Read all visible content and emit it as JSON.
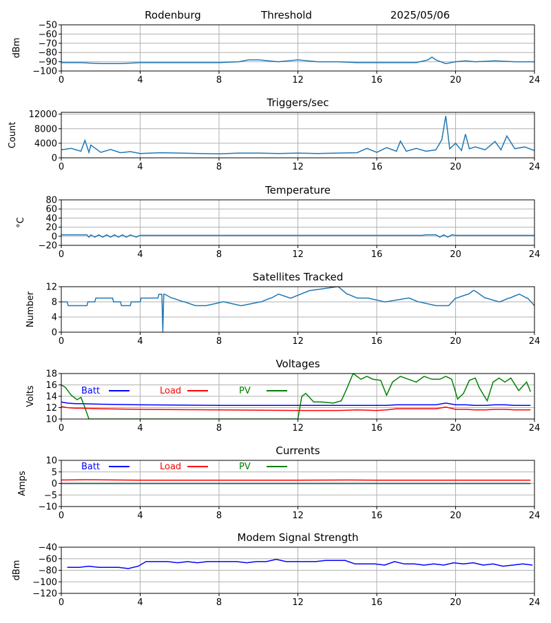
{
  "header": {
    "station": "Rodenburg",
    "mode": "Threshold",
    "date": "2025/05/06"
  },
  "colors": {
    "series_default": "#1f77b4",
    "batt": "#0000ff",
    "load": "#ff0000",
    "pv": "#008000",
    "grid": "#b0b0b0",
    "axis": "#000000"
  },
  "chart_data": [
    {
      "id": "threshold",
      "type": "line",
      "title": "",
      "ylabel": "dBm",
      "xlim": [
        0,
        24
      ],
      "ylim": [
        -100,
        -50
      ],
      "yticks": [
        -50,
        -60,
        -70,
        -80,
        -90,
        -100
      ],
      "xticks": [
        0,
        4,
        8,
        12,
        16,
        20,
        24
      ],
      "grid": true,
      "series": [
        {
          "color": "#1f77b4",
          "x": [
            0,
            1,
            2,
            3,
            4,
            5,
            6,
            7,
            8,
            9,
            9.5,
            10,
            11,
            12,
            12.5,
            13,
            14,
            15,
            16,
            17,
            18,
            18.6,
            18.8,
            19,
            19.5,
            20,
            20.5,
            21,
            22,
            23,
            24
          ],
          "y": [
            -91,
            -91,
            -92,
            -92,
            -91,
            -91,
            -91,
            -91,
            -91,
            -90,
            -88,
            -88,
            -90,
            -88,
            -89,
            -90,
            -90,
            -91,
            -91,
            -91,
            -91,
            -88,
            -85,
            -88,
            -92,
            -90,
            -89,
            -90,
            -89,
            -90,
            -90
          ]
        }
      ]
    },
    {
      "id": "triggers",
      "type": "line",
      "title": "Triggers/sec",
      "ylabel": "Count",
      "xlim": [
        0,
        24
      ],
      "ylim": [
        0,
        12500
      ],
      "yticks": [
        0,
        4000,
        8000,
        12000
      ],
      "xticks": [
        0,
        4,
        8,
        12,
        16,
        20,
        24
      ],
      "grid": true,
      "series": [
        {
          "color": "#1f77b4",
          "x": [
            0,
            0.5,
            1,
            1.2,
            1.4,
            1.5,
            2,
            2.5,
            3,
            3.5,
            4,
            5,
            6,
            7,
            8,
            9,
            10,
            11,
            12,
            13,
            14,
            15,
            15.5,
            16,
            16.5,
            17,
            17.2,
            17.5,
            18,
            18.5,
            19,
            19.3,
            19.5,
            19.7,
            20,
            20.3,
            20.5,
            20.7,
            21,
            21.5,
            22,
            22.3,
            22.6,
            23,
            23.5,
            24
          ],
          "y": [
            2200,
            2600,
            1800,
            4800,
            1500,
            3500,
            1500,
            2300,
            1400,
            1700,
            1200,
            1400,
            1300,
            1200,
            1100,
            1300,
            1300,
            1200,
            1300,
            1200,
            1300,
            1400,
            2600,
            1500,
            2800,
            1800,
            4600,
            1800,
            2600,
            1800,
            2200,
            5000,
            11500,
            2500,
            4000,
            2000,
            6500,
            2500,
            3000,
            2200,
            4500,
            2200,
            6000,
            2500,
            3000,
            2000
          ]
        }
      ]
    },
    {
      "id": "temperature",
      "type": "line",
      "title": "Temperature",
      "ylabel": "°C",
      "xlim": [
        0,
        24
      ],
      "ylim": [
        -20,
        80
      ],
      "yticks": [
        -20,
        0,
        20,
        40,
        60,
        80
      ],
      "xticks": [
        0,
        4,
        8,
        12,
        16,
        20,
        24
      ],
      "grid": true,
      "series": [
        {
          "color": "#1f77b4",
          "x": [
            0,
            1.3,
            1.4,
            1.5,
            1.7,
            1.9,
            2.1,
            2.3,
            2.5,
            2.7,
            2.9,
            3.1,
            3.3,
            3.5,
            3.8,
            4,
            8,
            12,
            16,
            18.3,
            18.5,
            19,
            19.2,
            19.4,
            19.6,
            19.8,
            20,
            24
          ],
          "y": [
            3,
            3,
            -2,
            3,
            -2,
            3,
            -2,
            3,
            -2,
            3,
            -2,
            3,
            -2,
            3,
            -2,
            2,
            2,
            2,
            2,
            2,
            3,
            3,
            -2,
            3,
            -2,
            3,
            2,
            2
          ]
        }
      ]
    },
    {
      "id": "satellites",
      "type": "line",
      "title": "Satellites Tracked",
      "ylabel": "Number",
      "xlim": [
        0,
        24
      ],
      "ylim": [
        0,
        12
      ],
      "yticks": [
        0,
        4,
        8,
        12
      ],
      "xticks": [
        0,
        4,
        8,
        12,
        16,
        20,
        24
      ],
      "grid": true,
      "series": [
        {
          "color": "#1f77b4",
          "x": [
            0,
            0.3,
            0.35,
            1.3,
            1.35,
            1.7,
            1.75,
            2.6,
            2.65,
            3,
            3.05,
            3.5,
            3.55,
            4,
            4.05,
            4.9,
            4.95,
            5.1,
            5.15,
            5.2,
            5.25,
            5.6,
            5.65,
            6.2,
            6.25,
            6.8,
            6.85,
            7.3,
            7.35,
            8.2,
            8.25,
            9.1,
            9.15,
            10.1,
            10.15,
            10.6,
            10.65,
            11,
            11.05,
            11.6,
            11.65,
            12.6,
            12.65,
            14,
            14.05,
            14.5,
            14.55,
            15,
            15.05,
            15.5,
            15.55,
            16.4,
            16.45,
            17.6,
            17.65,
            18.1,
            18.15,
            19,
            19.05,
            19.6,
            19.65,
            20,
            20.05,
            20.6,
            20.65,
            20.9,
            20.95,
            21.5,
            21.55,
            22.2,
            22.25,
            22.7,
            22.75,
            23.2,
            23.25,
            23.6,
            23.65,
            24
          ],
          "y": [
            8,
            8,
            7,
            7,
            8,
            8,
            9,
            9,
            8,
            8,
            7,
            7,
            8,
            8,
            9,
            9,
            10,
            10,
            0,
            10,
            10,
            9,
            9,
            8,
            8,
            7,
            7,
            7,
            7,
            8,
            8,
            7,
            7,
            8,
            8,
            9,
            9,
            10,
            10,
            9,
            9,
            11,
            11,
            12,
            12,
            10,
            10,
            9,
            9,
            9,
            9,
            8,
            8,
            9,
            9,
            8,
            8,
            7,
            7,
            7,
            7,
            9,
            9,
            10,
            10,
            11,
            11,
            9,
            9,
            8,
            8,
            9,
            9,
            10,
            10,
            9,
            9,
            7
          ]
        }
      ]
    },
    {
      "id": "voltages",
      "type": "line",
      "title": "Voltages",
      "ylabel": "Volts",
      "xlim": [
        0,
        24
      ],
      "ylim": [
        10,
        18
      ],
      "yticks": [
        10,
        12,
        14,
        16,
        18
      ],
      "xticks": [
        0,
        4,
        8,
        12,
        16,
        20,
        24
      ],
      "grid": true,
      "legend": [
        "Batt",
        "Load",
        "PV"
      ],
      "series": [
        {
          "name": "Batt",
          "color": "#0000ff",
          "x": [
            0,
            0.3,
            0.7,
            1,
            2,
            4,
            8,
            12,
            14,
            15,
            16,
            16.5,
            17,
            17.5,
            18,
            19,
            19.5,
            20,
            20.5,
            21,
            21.5,
            22,
            22.5,
            23,
            23.8
          ],
          "y": [
            13,
            12.8,
            12.7,
            12.7,
            12.6,
            12.5,
            12.4,
            12.4,
            12.4,
            12.4,
            12.4,
            12.4,
            12.5,
            12.5,
            12.5,
            12.5,
            12.8,
            12.5,
            12.5,
            12.4,
            12.4,
            12.5,
            12.5,
            12.4,
            12.4
          ]
        },
        {
          "name": "Load",
          "color": "#ff0000",
          "x": [
            0,
            0.3,
            0.7,
            1,
            2,
            4,
            8,
            12,
            14,
            15,
            16,
            16.5,
            17,
            17.5,
            18,
            19,
            19.5,
            20,
            20.5,
            21,
            21.5,
            22,
            22.5,
            23,
            23.8
          ],
          "y": [
            12.2,
            12,
            11.9,
            11.9,
            11.8,
            11.7,
            11.6,
            11.5,
            11.5,
            11.6,
            11.5,
            11.6,
            11.8,
            11.8,
            11.8,
            11.8,
            12.1,
            11.7,
            11.7,
            11.6,
            11.6,
            11.7,
            11.7,
            11.6,
            11.6
          ]
        },
        {
          "name": "PV",
          "color": "#008000",
          "x": [
            0,
            0.2,
            0.5,
            0.8,
            1,
            1.2,
            1.4,
            12,
            12.2,
            12.4,
            12.8,
            13.2,
            13.8,
            14.2,
            14.5,
            14.8,
            15.2,
            15.5,
            15.8,
            16.2,
            16.5,
            16.8,
            17.2,
            17.6,
            18,
            18.4,
            18.8,
            19.2,
            19.5,
            19.8,
            20.1,
            20.4,
            20.7,
            21,
            21.2,
            21.6,
            21.9,
            22.2,
            22.5,
            22.8,
            23.2,
            23.6,
            23.8
          ],
          "y": [
            16,
            15.6,
            14.2,
            13.4,
            13.8,
            12,
            10,
            10,
            14,
            14.5,
            13,
            13,
            12.8,
            13.2,
            15.5,
            18,
            17,
            17.5,
            17,
            16.8,
            14.2,
            16.5,
            17.5,
            17,
            16.5,
            17.5,
            17,
            17,
            17.5,
            17,
            13.5,
            14.5,
            16.8,
            17.2,
            15.5,
            13.2,
            16.5,
            17.2,
            16.5,
            17.2,
            15,
            16.5,
            14.8
          ]
        }
      ]
    },
    {
      "id": "currents",
      "type": "line",
      "title": "Currents",
      "ylabel": "Amps",
      "xlim": [
        0,
        24
      ],
      "ylim": [
        -10,
        10
      ],
      "yticks": [
        -10,
        -5,
        0,
        5,
        10
      ],
      "xticks": [
        0,
        4,
        8,
        12,
        16,
        20,
        24
      ],
      "grid": true,
      "legend": [
        "Batt",
        "Load",
        "PV"
      ],
      "series": [
        {
          "name": "Batt",
          "color": "#0000ff",
          "x": [
            0,
            23.8
          ],
          "y": [
            0,
            0
          ]
        },
        {
          "name": "Load",
          "color": "#ff0000",
          "x": [
            0,
            1.3,
            4,
            8,
            12,
            14.5,
            16,
            20,
            23.8
          ],
          "y": [
            1.5,
            1.6,
            1.4,
            1.4,
            1.4,
            1.5,
            1.4,
            1.4,
            1.4
          ]
        },
        {
          "name": "PV",
          "color": "#008000",
          "x": [
            0,
            23.8
          ],
          "y": [
            0,
            0
          ]
        }
      ]
    },
    {
      "id": "modem",
      "type": "line",
      "title": "Modem Signal Strength",
      "ylabel": "dBm",
      "xlim": [
        0,
        24
      ],
      "ylim": [
        -120,
        -40
      ],
      "yticks": [
        -40,
        -60,
        -80,
        -100,
        -120
      ],
      "xticks": [
        0,
        4,
        8,
        12,
        16,
        20,
        24
      ],
      "grid": true,
      "series": [
        {
          "color": "#0000ff",
          "x": [
            0.3,
            0.9,
            1.4,
            1.9,
            2.4,
            2.9,
            3.4,
            3.9,
            4.3,
            4.9,
            5.4,
            5.9,
            6.4,
            6.9,
            7.4,
            7.9,
            8.4,
            8.9,
            9.4,
            9.9,
            10.4,
            10.9,
            11.4,
            11.9,
            12.4,
            12.9,
            13.4,
            13.9,
            14.4,
            14.9,
            15.4,
            15.9,
            16.4,
            16.9,
            17.4,
            17.9,
            18.4,
            18.9,
            19.4,
            19.9,
            20.4,
            20.9,
            21.4,
            21.9,
            22.4,
            22.9,
            23.4,
            23.9
          ],
          "y": [
            -75,
            -75,
            -73,
            -75,
            -75,
            -75,
            -77,
            -73,
            -65,
            -65,
            -65,
            -67,
            -65,
            -67,
            -65,
            -65,
            -65,
            -65,
            -67,
            -65,
            -65,
            -61,
            -65,
            -65,
            -65,
            -65,
            -63,
            -63,
            -63,
            -69,
            -69,
            -69,
            -71,
            -65,
            -69,
            -69,
            -71,
            -69,
            -71,
            -67,
            -69,
            -67,
            -71,
            -69,
            -73,
            -71,
            -69,
            -71
          ]
        }
      ]
    }
  ]
}
